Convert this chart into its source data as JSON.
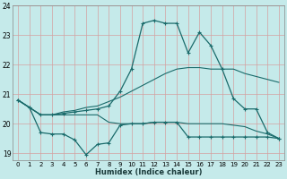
{
  "xlabel": "Humidex (Indice chaleur)",
  "ylabel": "",
  "background_color": "#c5eaea",
  "grid_color_v": "#d4a0a0",
  "grid_color_h": "#d4a0a0",
  "line_color": "#1a6b6b",
  "x": [
    0,
    1,
    2,
    3,
    4,
    5,
    6,
    7,
    8,
    9,
    10,
    11,
    12,
    13,
    14,
    15,
    16,
    17,
    18,
    19,
    20,
    21,
    22,
    23
  ],
  "y_line1": [
    20.8,
    20.55,
    20.3,
    20.3,
    20.4,
    20.45,
    20.55,
    20.6,
    20.75,
    20.9,
    21.1,
    21.3,
    21.5,
    21.7,
    21.85,
    21.9,
    21.9,
    21.85,
    21.85,
    21.85,
    21.7,
    21.6,
    21.5,
    21.4
  ],
  "y_line2_max": [
    20.8,
    20.55,
    20.3,
    20.3,
    20.35,
    20.4,
    20.45,
    20.5,
    20.6,
    21.1,
    21.85,
    23.4,
    23.5,
    23.4,
    23.4,
    22.4,
    23.1,
    22.65,
    21.85,
    20.85,
    20.5,
    20.5,
    19.7,
    19.5
  ],
  "y_line3": [
    20.8,
    20.55,
    20.3,
    20.3,
    20.3,
    20.3,
    20.3,
    20.3,
    20.05,
    20.0,
    20.0,
    20.0,
    20.05,
    20.05,
    20.05,
    20.0,
    20.0,
    20.0,
    20.0,
    19.95,
    19.9,
    19.75,
    19.65,
    19.5
  ],
  "y_line4_min": [
    20.8,
    20.55,
    19.7,
    19.65,
    19.65,
    19.45,
    18.95,
    19.3,
    19.35,
    19.95,
    20.0,
    20.0,
    20.05,
    20.05,
    20.05,
    19.55,
    19.55,
    19.55,
    19.55,
    19.55,
    19.55,
    19.55,
    19.55,
    19.5
  ],
  "ylim": [
    18.75,
    24.0
  ],
  "xlim": [
    -0.5,
    23.5
  ],
  "yticks": [
    19,
    20,
    21,
    22,
    23,
    24
  ],
  "xticks": [
    0,
    1,
    2,
    3,
    4,
    5,
    6,
    7,
    8,
    9,
    10,
    11,
    12,
    13,
    14,
    15,
    16,
    17,
    18,
    19,
    20,
    21,
    22,
    23
  ],
  "marker_indices_line2": [
    0,
    1,
    2,
    9,
    10,
    11,
    12,
    13,
    14,
    15,
    16,
    17,
    18,
    19,
    20,
    21,
    22,
    23
  ],
  "marker_indices_line4": [
    0,
    1,
    2,
    3,
    4,
    5,
    6,
    7,
    8,
    9,
    10,
    11,
    12,
    13,
    19,
    20,
    21,
    22,
    23
  ]
}
